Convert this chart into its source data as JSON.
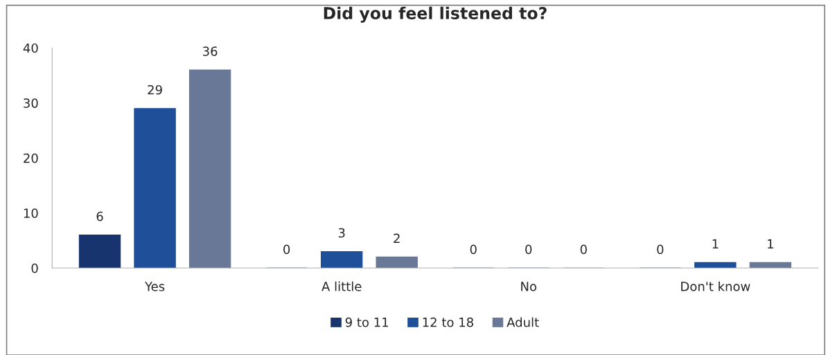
{
  "chart_data": {
    "type": "bar",
    "title": "Did you feel listened to?",
    "categories": [
      "Yes",
      "A little",
      "No",
      "Don't know"
    ],
    "series": [
      {
        "name": "9 to 11",
        "color": "#17346e",
        "values": [
          6,
          0,
          0,
          0
        ]
      },
      {
        "name": "12 to 18",
        "color": "#1f4f98",
        "values": [
          29,
          3,
          0,
          1
        ]
      },
      {
        "name": "Adult",
        "color": "#6a7898",
        "values": [
          36,
          2,
          0,
          1
        ]
      }
    ],
    "ylim": [
      0,
      40
    ],
    "yticks": [
      0,
      10,
      20,
      30,
      40
    ],
    "grid": false,
    "legend": "bottom",
    "data_labels": true
  }
}
